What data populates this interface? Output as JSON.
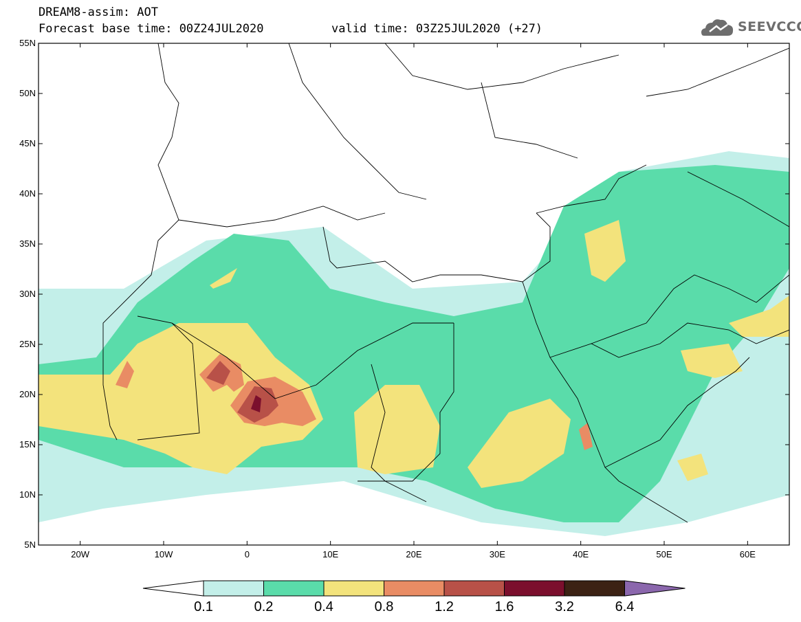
{
  "header": {
    "line1": "DREAM8-assim: AOT",
    "line2_base": "Forecast base time: 00Z24JUL2020",
    "line2_valid": "valid time: 03Z25JUL2020 (+27)",
    "logo_text": "SEEVCCC"
  },
  "map": {
    "lon_range": [
      -25,
      65
    ],
    "lat_range": [
      5,
      55
    ],
    "y_ticks": [
      "55N",
      "50N",
      "45N",
      "40N",
      "35N",
      "30N",
      "25N",
      "20N",
      "15N",
      "10N",
      "5N"
    ],
    "x_ticks": [
      "20W",
      "10W",
      "0",
      "10E",
      "20E",
      "30E",
      "40E",
      "50E",
      "60E"
    ],
    "colors": {
      "c01": "#c3efe9",
      "c02": "#5adcaa",
      "c04": "#f3e37c",
      "c08": "#e98c64",
      "c12": "#b85148",
      "c16": "#7b0f2d",
      "c32": "#3c2214",
      "c64": "#8b67ad"
    }
  },
  "legend": {
    "labels": [
      "0.1",
      "0.2",
      "0.4",
      "0.8",
      "1.2",
      "1.6",
      "3.2",
      "6.4"
    ]
  }
}
